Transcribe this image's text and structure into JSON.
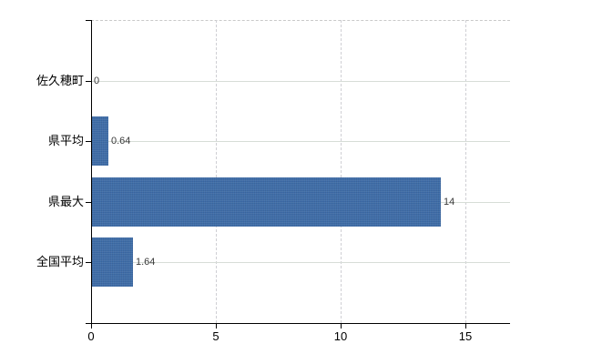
{
  "chart_data": {
    "type": "bar",
    "orientation": "horizontal",
    "title": "",
    "xlabel": "",
    "ylabel": "",
    "categories": [
      "佐久穂町",
      "県平均",
      "県最大",
      "全国平均"
    ],
    "values": [
      0,
      0.64,
      14,
      1.64
    ],
    "value_labels": [
      "0",
      "0.64",
      "14",
      "1.64"
    ],
    "x_ticks": [
      0,
      5,
      10,
      15
    ],
    "x_tick_labels": [
      "0",
      "5",
      "10",
      "15"
    ],
    "xlim": [
      0,
      16.8
    ],
    "legend": "none",
    "grid": {
      "horizontal": "solid-at-category-centers",
      "vertical": "dashed-at-ticks",
      "top_border": "dashed"
    },
    "bar_color": "#3d6ca8"
  },
  "colors": {
    "background": "#ffffff",
    "axis": "#000000",
    "grid_horizontal": "#d7ddd7",
    "grid_vertical": "#cfcfd4",
    "top_border": "#c9c9c9",
    "category_label": "#000000",
    "value_label": "#3a3a3a",
    "bar": "#3d6ca8"
  }
}
